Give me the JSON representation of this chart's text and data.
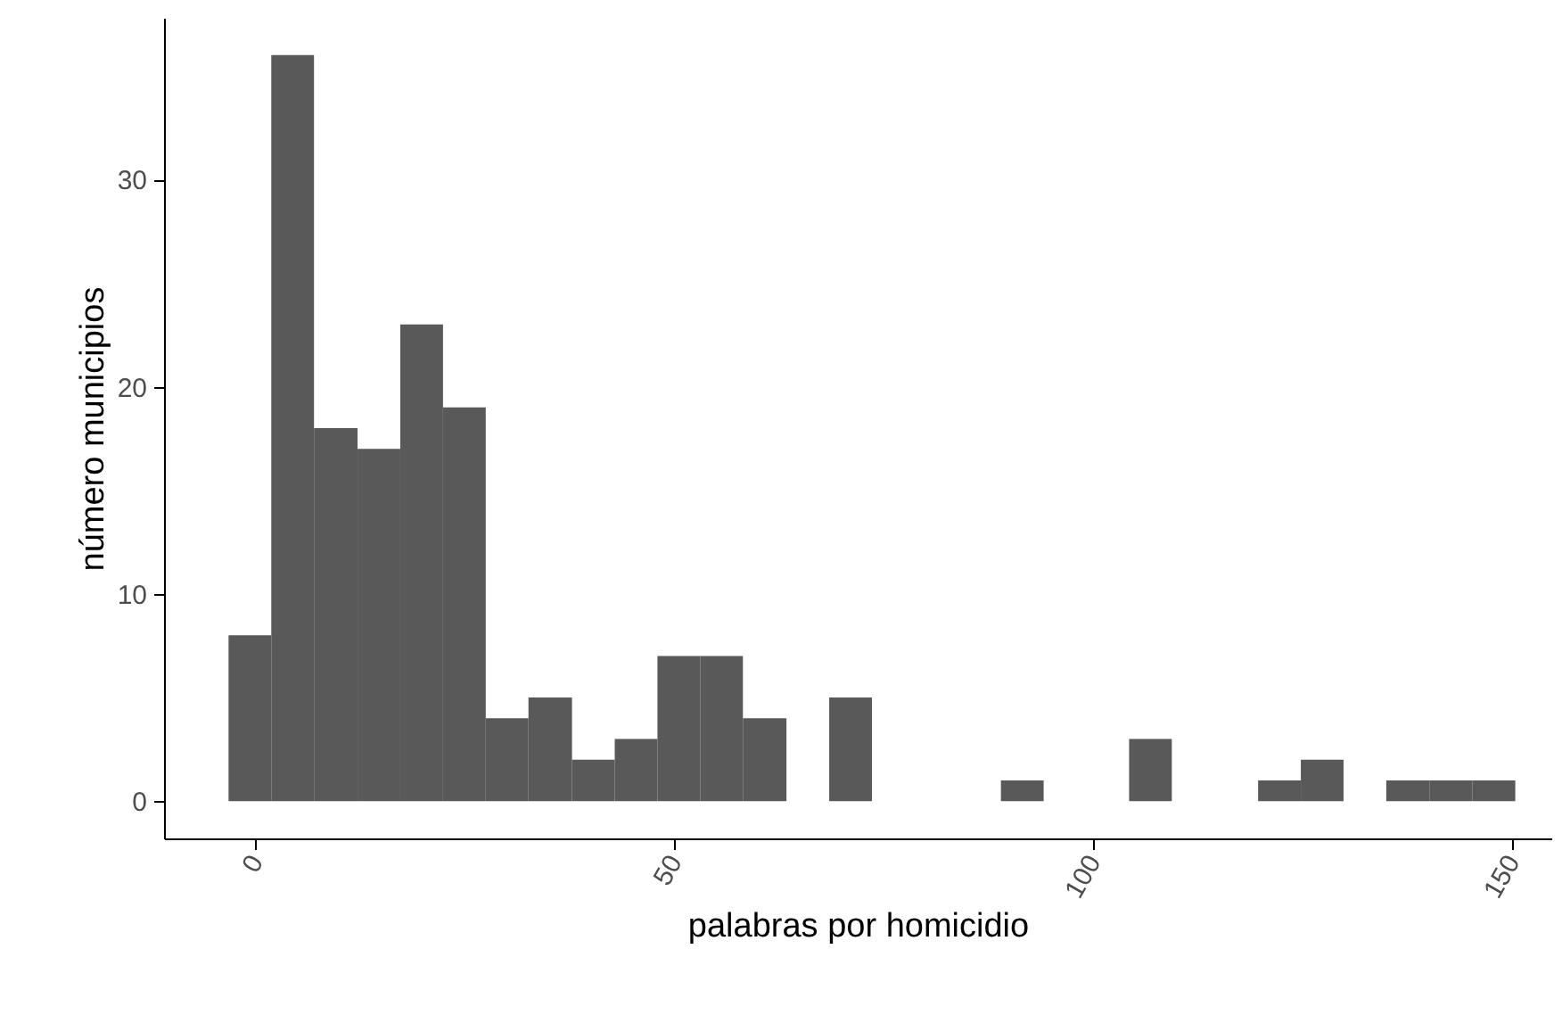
{
  "chart_data": {
    "type": "histogram",
    "xlabel": "palabras por homicidio",
    "ylabel": "número municipios",
    "bins": [
      -3.2,
      1.9,
      7.0,
      12.2,
      17.3,
      22.4,
      27.5,
      32.6,
      37.8,
      42.9,
      48.0,
      53.1,
      58.2,
      63.4,
      68.5,
      73.6,
      89.0,
      94.1,
      104.3,
      109.4,
      119.7,
      124.8,
      129.9,
      135.0,
      140.2,
      145.3,
      150.4
    ],
    "values": [
      8,
      36,
      18,
      17,
      23,
      19,
      4,
      5,
      2,
      3,
      7,
      7,
      4,
      0,
      5,
      0,
      1,
      0,
      3,
      0,
      1,
      2,
      0,
      1,
      1,
      1
    ],
    "color": "#595959",
    "xlim": [
      -10.9,
      154.7
    ],
    "xticks": [
      0,
      50,
      100,
      150
    ],
    "ylim": [
      -1.8,
      37.8
    ],
    "yticks": [
      0,
      10,
      20,
      30
    ],
    "grid": false
  }
}
